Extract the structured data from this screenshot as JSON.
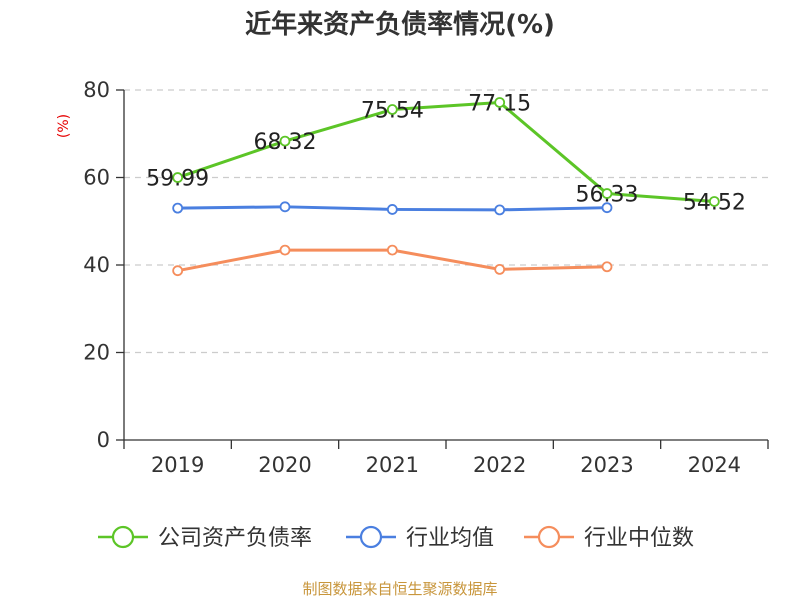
{
  "colors": {
    "title": "#333333",
    "axis": "#333333",
    "grid": "#cccccc",
    "ylabel": "#e60000",
    "source": "#c8963c"
  },
  "footer": {
    "source": "制图数据来自恒生聚源数据库"
  },
  "chart_data": {
    "type": "line",
    "title": "近年来资产负债率情况(%)",
    "xlabel": "",
    "ylabel": "(%)",
    "categories": [
      "2019",
      "2020",
      "2021",
      "2022",
      "2023",
      "2024"
    ],
    "ylim": [
      0,
      80
    ],
    "yticks": [
      0,
      20,
      40,
      60,
      80
    ],
    "grid": true,
    "legend_position": "bottom",
    "series": [
      {
        "name": "公司资产负债率",
        "color": "#5cc527",
        "values": [
          59.99,
          68.32,
          75.54,
          77.15,
          56.33,
          54.52
        ],
        "labels": [
          "59.99",
          "68.32",
          "75.54",
          "77.15",
          "56.33",
          "54.52"
        ]
      },
      {
        "name": "行业均值",
        "color": "#4a7fe0",
        "values": [
          53.0,
          53.3,
          52.7,
          52.6,
          53.1,
          null
        ]
      },
      {
        "name": "行业中位数",
        "color": "#f58d5c",
        "values": [
          38.7,
          43.4,
          43.4,
          39.0,
          39.6,
          null
        ]
      }
    ]
  }
}
